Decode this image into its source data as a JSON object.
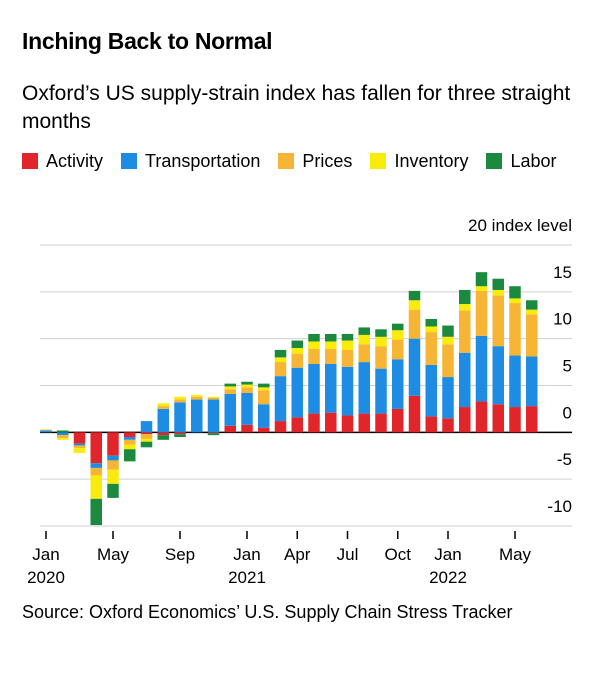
{
  "chart_data": {
    "type": "stacked_bar",
    "title": "Inching Back to Normal",
    "subtitle": "Oxford’s US supply-strain index has fallen for three straight months",
    "source": "Source: Oxford Economics’ U.S. Supply Chain Stress Tracker",
    "categories": [
      "Jan",
      null,
      null,
      null,
      "May",
      null,
      null,
      null,
      "Sep",
      null,
      null,
      null,
      "Jan",
      null,
      null,
      "Apr",
      null,
      null,
      "Jul",
      null,
      null,
      "Oct",
      null,
      null,
      "Jan",
      null,
      null,
      null,
      "May",
      null
    ],
    "x_year_labels": [
      "2020",
      "2021",
      "2022"
    ],
    "series": [
      {
        "name": "Activity",
        "color": "#e1262b",
        "values": [
          0,
          0,
          -1.2,
          -3.3,
          -2.5,
          -0.5,
          -0.2,
          -0.3,
          -0.2,
          0,
          -0.1,
          0.7,
          0.8,
          0.5,
          1.2,
          1.6,
          2,
          2.1,
          1.8,
          2,
          2,
          2.5,
          3.9,
          1.7,
          1.5,
          2.7,
          3.3,
          3,
          2.7,
          2.8
        ]
      },
      {
        "name": "Transportation",
        "color": "#1f8ce3",
        "values": [
          0.2,
          -0.3,
          -0.2,
          -0.5,
          -0.5,
          -0.3,
          1.2,
          2.5,
          3.2,
          3.5,
          3.5,
          3.4,
          3.4,
          2.5,
          4.8,
          5.3,
          5.3,
          5.2,
          5.2,
          5.5,
          4.8,
          5.3,
          6.1,
          5.5,
          4.4,
          5.8,
          7,
          6.2,
          5.5,
          5.3
        ]
      },
      {
        "name": "Prices",
        "color": "#f6b534",
        "values": [
          0.1,
          -0.3,
          -0.3,
          -0.8,
          -1,
          -0.5,
          -0.5,
          0.3,
          0.3,
          0.3,
          0.2,
          0.5,
          0.6,
          1.5,
          1.5,
          1.5,
          1.6,
          1.6,
          1.8,
          1.9,
          2.4,
          2.1,
          3.1,
          3.5,
          3.5,
          4.5,
          4.8,
          5.4,
          5.6,
          4.5
        ]
      },
      {
        "name": "Inventory",
        "color": "#f9ec0c",
        "values": [
          0,
          -0.2,
          -0.5,
          -2.5,
          -1.5,
          -0.5,
          -0.3,
          0.3,
          0.3,
          0.2,
          0.1,
          0.3,
          0.3,
          0.3,
          0.5,
          0.6,
          0.8,
          0.8,
          1,
          1,
          1,
          1,
          1,
          0.6,
          0.8,
          0.7,
          0.5,
          0.6,
          0.5,
          0.5
        ]
      },
      {
        "name": "Labor",
        "color": "#1b8a3f",
        "values": [
          0,
          0.2,
          0,
          -2.8,
          -1.5,
          -1.3,
          -0.6,
          -0.5,
          -0.3,
          0,
          -0.2,
          0.3,
          0.3,
          0.4,
          0.8,
          0.8,
          0.8,
          0.8,
          0.7,
          0.8,
          0.8,
          0.7,
          1,
          0.8,
          1.2,
          1.5,
          1.5,
          1.2,
          1.3,
          1
        ]
      }
    ],
    "ylim": [
      -10,
      20
    ],
    "yticks": [
      -10,
      -5,
      0,
      5,
      10,
      15,
      {
        "value": 20,
        "label": "20 index level"
      }
    ],
    "grid": true
  }
}
